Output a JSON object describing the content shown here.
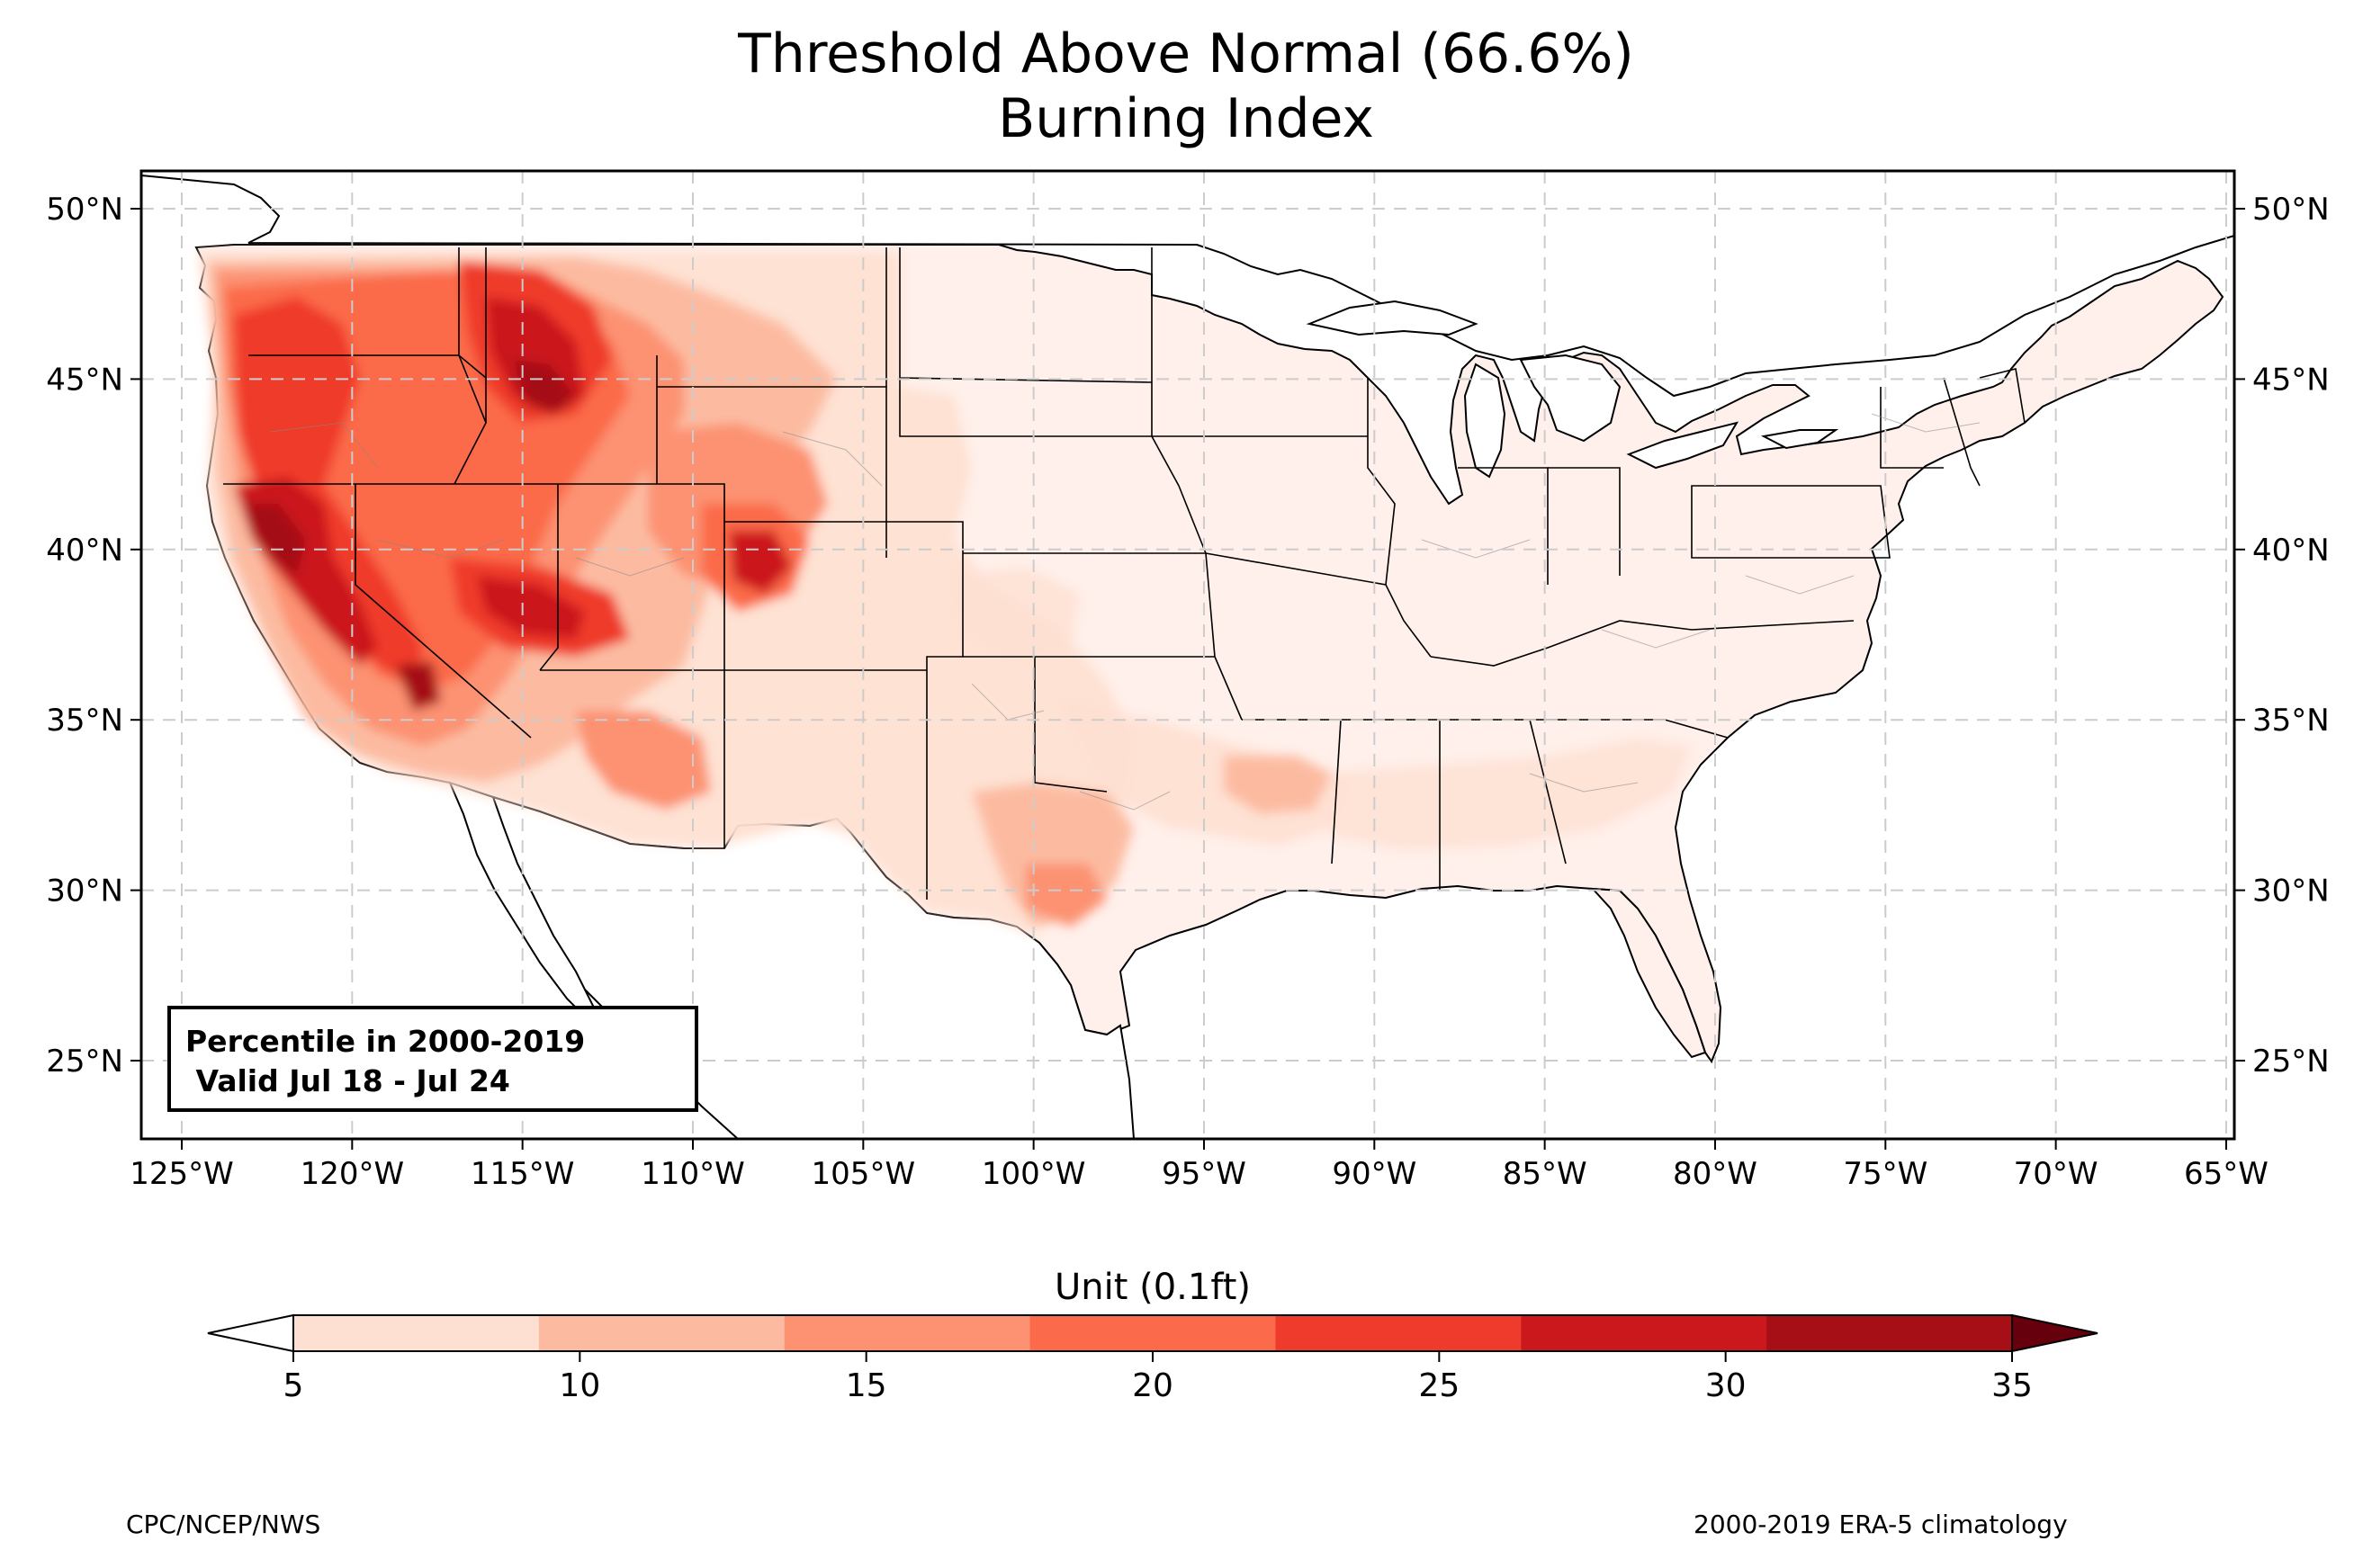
{
  "title_line1": "Threshold Above Normal (66.6%)",
  "title_line2": "Burning Index",
  "info_box": {
    "line1": "Percentile in 2000-2019",
    "line2": " Valid Jul 18 - Jul 24"
  },
  "lon_ticks": [
    "125°W",
    "120°W",
    "115°W",
    "110°W",
    "105°W",
    "100°W",
    "95°W",
    "90°W",
    "85°W",
    "80°W",
    "75°W",
    "70°W",
    "65°W"
  ],
  "lat_ticks": [
    "50°N",
    "45°N",
    "40°N",
    "35°N",
    "30°N",
    "25°N"
  ],
  "colorbar": {
    "label": "Unit (0.1ft)",
    "ticks": [
      "5",
      "10",
      "15",
      "20",
      "25",
      "30",
      "35"
    ],
    "colors": [
      "#fee0d2",
      "#fcbba1",
      "#fc9272",
      "#fb6a4a",
      "#ef3b2c",
      "#cb181d",
      "#a50f15"
    ],
    "under_color": "#ffffff",
    "over_color": "#67000d"
  },
  "credit_left": "CPC/NCEP/NWS",
  "credit_right": "2000-2019 ERA-5 climatology",
  "colors": {
    "frame": "#000000",
    "gridline": "#cccccc",
    "ocean": "#ffffff",
    "land_base": "#fff0eb"
  }
}
